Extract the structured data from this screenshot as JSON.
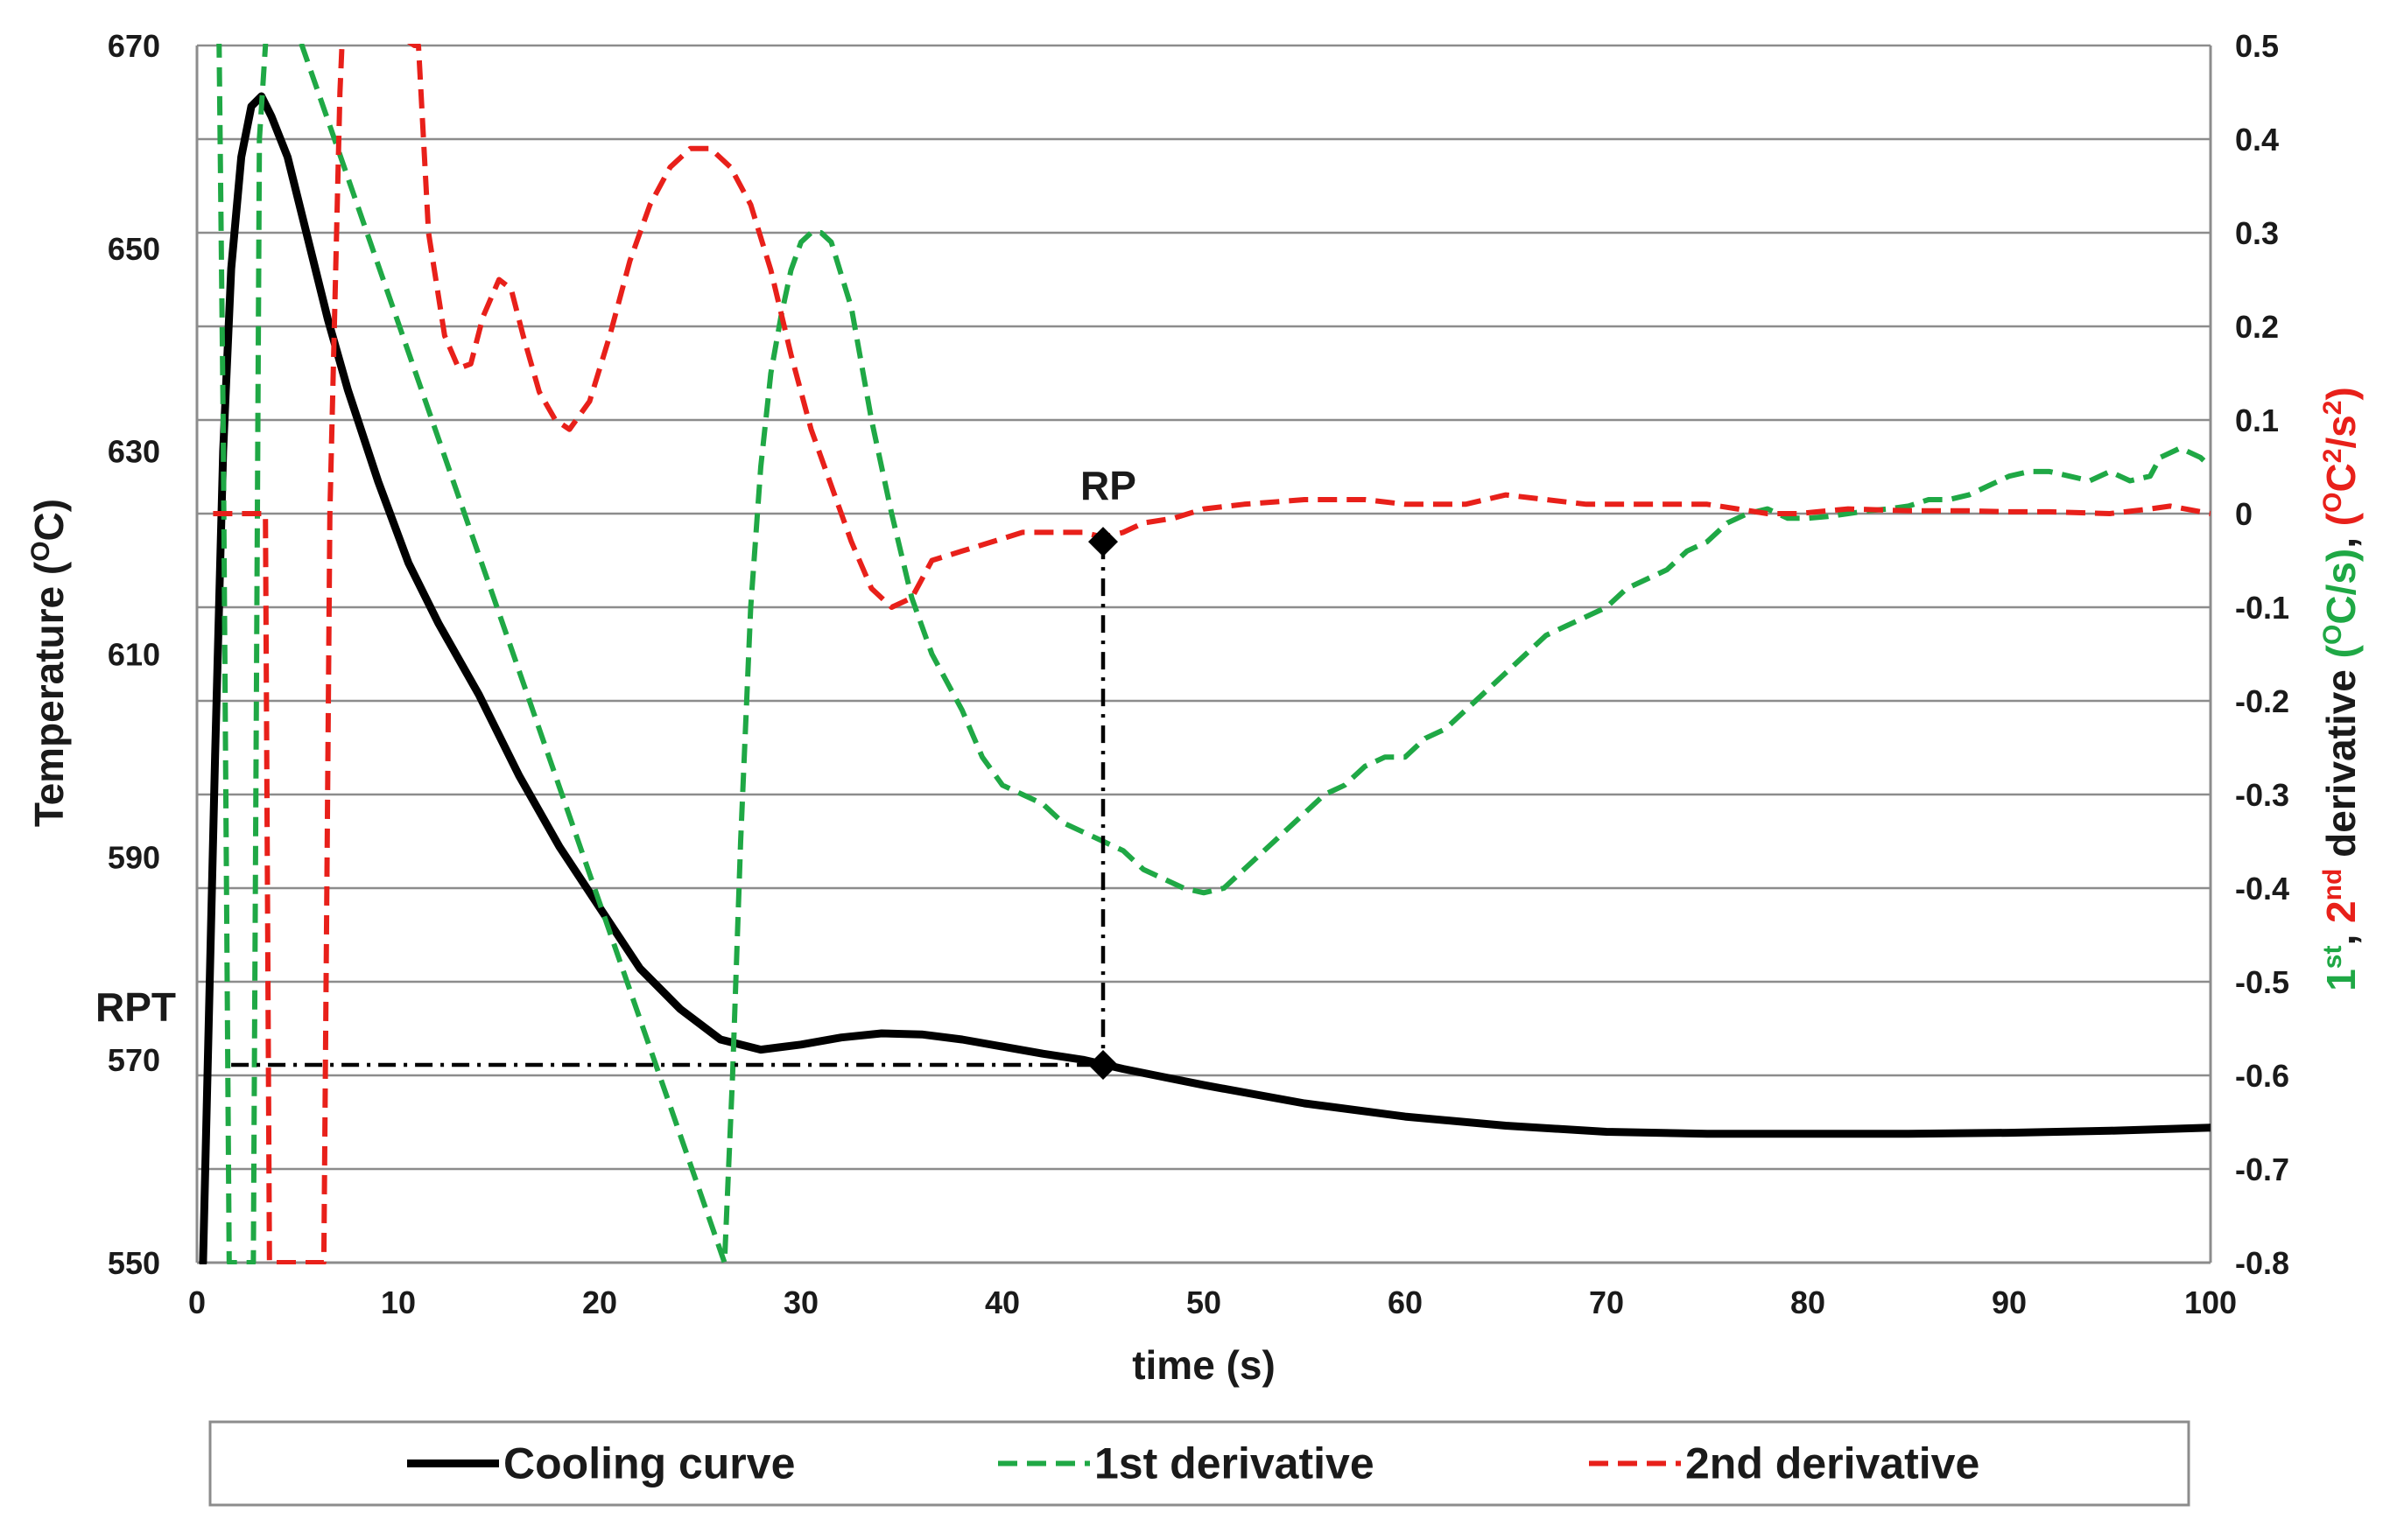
{
  "chart_data": {
    "type": "line",
    "x_axis": {
      "label": "time (s)",
      "range": [
        0,
        100
      ],
      "ticks": [
        0,
        10,
        20,
        30,
        40,
        50,
        60,
        70,
        80,
        90,
        100
      ]
    },
    "y_axis_left": {
      "label": "Temperature",
      "label_parts": [
        "Temperature (",
        "O",
        "C)"
      ],
      "range": [
        550,
        670
      ],
      "ticks": [
        550,
        570,
        590,
        610,
        630,
        650,
        670
      ]
    },
    "y_axis_right": {
      "range": [
        -0.8,
        0.5
      ],
      "ticks": [
        "-0.8",
        "-0.7",
        "-0.6",
        "-0.5",
        "-0.4",
        "-0.3",
        "-0.2",
        "-0.1",
        "0",
        "0.1",
        "0.2",
        "0.3",
        "0.4",
        "0.5"
      ],
      "label_parts": [
        {
          "text": "1",
          "color": "#1fa845",
          "sup": false
        },
        {
          "text": "st",
          "color": "#1fa845",
          "sup": true
        },
        {
          "text": ", ",
          "color": "#1a1a1a",
          "sup": false
        },
        {
          "text": "2",
          "color": "#e8201a",
          "sup": false
        },
        {
          "text": "nd",
          "color": "#e8201a",
          "sup": true
        },
        {
          "text": " derivative ",
          "color": "#1a1a1a",
          "sup": false
        },
        {
          "text": "(",
          "color": "#1fa845",
          "sup": false
        },
        {
          "text": "O",
          "color": "#1fa845",
          "sup": true
        },
        {
          "text": "C/s)",
          "color": "#1fa845",
          "sup": false
        },
        {
          "text": ", ",
          "color": "#1a1a1a",
          "sup": false
        },
        {
          "text": "(",
          "color": "#e8201a",
          "sup": false
        },
        {
          "text": "O",
          "color": "#e8201a",
          "sup": true
        },
        {
          "text": "C",
          "color": "#e8201a",
          "sup": false
        },
        {
          "text": "2",
          "color": "#e8201a",
          "sup": true
        },
        {
          "text": "/s",
          "color": "#e8201a",
          "sup": false
        },
        {
          "text": "2",
          "color": "#e8201a",
          "sup": true
        },
        {
          "text": ")",
          "color": "#e8201a",
          "sup": false
        }
      ]
    },
    "grid": "horizontal",
    "legend_position": "bottom",
    "series": [
      {
        "name": "Cooling curve",
        "axis": "left",
        "color": "#000000",
        "style": "solid",
        "points": [
          [
            0.3,
            550
          ],
          [
            0.6,
            575
          ],
          [
            0.9,
            600
          ],
          [
            1.3,
            630
          ],
          [
            1.7,
            648
          ],
          [
            2.2,
            659
          ],
          [
            2.7,
            664
          ],
          [
            3.2,
            665
          ],
          [
            3.7,
            663
          ],
          [
            4.5,
            659
          ],
          [
            5.5,
            651
          ],
          [
            6.5,
            643
          ],
          [
            7.5,
            636
          ],
          [
            9,
            627
          ],
          [
            10.5,
            619
          ],
          [
            12,
            613
          ],
          [
            14,
            606
          ],
          [
            16,
            598
          ],
          [
            18,
            591
          ],
          [
            20,
            585
          ],
          [
            22,
            579
          ],
          [
            24,
            575
          ],
          [
            26,
            572
          ],
          [
            28,
            571
          ],
          [
            30,
            571.5
          ],
          [
            32,
            572.2
          ],
          [
            34,
            572.6
          ],
          [
            36,
            572.5
          ],
          [
            38,
            572
          ],
          [
            40,
            571.3
          ],
          [
            42,
            570.6
          ],
          [
            44,
            570
          ],
          [
            46,
            569.1
          ],
          [
            48,
            568.3
          ],
          [
            50,
            567.5
          ],
          [
            55,
            565.7
          ],
          [
            60,
            564.4
          ],
          [
            65,
            563.5
          ],
          [
            70,
            562.9
          ],
          [
            75,
            562.7
          ],
          [
            80,
            562.7
          ],
          [
            85,
            562.7
          ],
          [
            90,
            562.8
          ],
          [
            95,
            563
          ],
          [
            100,
            563.3
          ]
        ]
      },
      {
        "name": "1st derivative",
        "axis": "right",
        "color": "#1fa845",
        "style": "dashed",
        "points": [
          [
            0.9,
            0.6
          ],
          [
            1.1,
            0.5
          ],
          [
            1.3,
            0.1
          ],
          [
            1.6,
            -0.8
          ],
          [
            2.8,
            -0.8
          ],
          [
            3.1,
            0.4
          ],
          [
            3.4,
            0.5
          ],
          [
            3.6,
            0.6
          ],
          [
            26.2,
            -0.8
          ],
          [
            26.6,
            -0.6
          ],
          [
            27,
            -0.35
          ],
          [
            27.5,
            -0.1
          ],
          [
            28,
            0.05
          ],
          [
            28.5,
            0.15
          ],
          [
            29,
            0.21
          ],
          [
            29.5,
            0.26
          ],
          [
            30,
            0.29
          ],
          [
            30.5,
            0.3
          ],
          [
            31,
            0.3
          ],
          [
            31.5,
            0.29
          ],
          [
            32.5,
            0.22
          ],
          [
            33.5,
            0.1
          ],
          [
            34.5,
            0
          ],
          [
            35.5,
            -0.09
          ],
          [
            36.5,
            -0.15
          ],
          [
            38,
            -0.21
          ],
          [
            39,
            -0.26
          ],
          [
            40,
            -0.29
          ],
          [
            41,
            -0.3
          ],
          [
            42,
            -0.31
          ],
          [
            43,
            -0.33
          ],
          [
            44,
            -0.34
          ],
          [
            45,
            -0.35
          ],
          [
            46,
            -0.36
          ],
          [
            47,
            -0.38
          ],
          [
            48,
            -0.39
          ],
          [
            49,
            -0.4
          ],
          [
            50,
            -0.405
          ],
          [
            51,
            -0.4
          ],
          [
            52,
            -0.38
          ],
          [
            53,
            -0.36
          ],
          [
            54,
            -0.34
          ],
          [
            55,
            -0.32
          ],
          [
            56,
            -0.3
          ],
          [
            57,
            -0.29
          ],
          [
            58,
            -0.27
          ],
          [
            59,
            -0.26
          ],
          [
            60,
            -0.26
          ],
          [
            61,
            -0.24
          ],
          [
            62,
            -0.23
          ],
          [
            63,
            -0.21
          ],
          [
            64,
            -0.19
          ],
          [
            65,
            -0.17
          ],
          [
            66,
            -0.15
          ],
          [
            67,
            -0.13
          ],
          [
            68,
            -0.12
          ],
          [
            69,
            -0.11
          ],
          [
            70,
            -0.1
          ],
          [
            71,
            -0.08
          ],
          [
            72,
            -0.07
          ],
          [
            73,
            -0.06
          ],
          [
            74,
            -0.04
          ],
          [
            75,
            -0.03
          ],
          [
            76,
            -0.01
          ],
          [
            77,
            0
          ],
          [
            78,
            0.005
          ],
          [
            79,
            -0.005
          ],
          [
            80,
            -0.005
          ],
          [
            81,
            -0.003
          ],
          [
            82,
            0
          ],
          [
            83,
            0.003
          ],
          [
            84,
            0.005
          ],
          [
            85,
            0.008
          ],
          [
            86,
            0.015
          ],
          [
            87,
            0.015
          ],
          [
            88,
            0.02
          ],
          [
            89,
            0.03
          ],
          [
            90,
            0.04
          ],
          [
            91,
            0.045
          ],
          [
            92,
            0.045
          ],
          [
            93,
            0.04
          ],
          [
            94,
            0.035
          ],
          [
            95,
            0.045
          ],
          [
            96,
            0.035
          ],
          [
            97,
            0.04
          ],
          [
            97.5,
            0.06
          ],
          [
            98.5,
            0.07
          ],
          [
            99.5,
            0.06
          ],
          [
            100,
            0.05
          ]
        ]
      },
      {
        "name": "2nd derivative",
        "axis": "right",
        "color": "#e8201a",
        "style": "dashed",
        "points": [
          [
            0.8,
            0
          ],
          [
            2.5,
            0
          ],
          [
            3.4,
            0
          ],
          [
            3.6,
            -0.8
          ],
          [
            6.3,
            -0.8
          ],
          [
            6.6,
            0
          ],
          [
            7.1,
            0.45
          ],
          [
            7.3,
            0.55
          ],
          [
            10.8,
            0.5
          ],
          [
            11,
            0.5
          ],
          [
            11.5,
            0.3
          ],
          [
            12.3,
            0.19
          ],
          [
            13,
            0.155
          ],
          [
            13.6,
            0.16
          ],
          [
            14.2,
            0.21
          ],
          [
            15,
            0.25
          ],
          [
            15.6,
            0.24
          ],
          [
            16.2,
            0.19
          ],
          [
            17,
            0.13
          ],
          [
            17.8,
            0.1
          ],
          [
            18.5,
            0.09
          ],
          [
            19.5,
            0.12
          ],
          [
            20.5,
            0.19
          ],
          [
            21.5,
            0.27
          ],
          [
            22.5,
            0.33
          ],
          [
            23.5,
            0.37
          ],
          [
            24.5,
            0.39
          ],
          [
            25.5,
            0.39
          ],
          [
            26.5,
            0.37
          ],
          [
            27.5,
            0.33
          ],
          [
            28.5,
            0.26
          ],
          [
            29.5,
            0.17
          ],
          [
            30.5,
            0.09
          ],
          [
            31.5,
            0.03
          ],
          [
            32.5,
            -0.03
          ],
          [
            33.5,
            -0.08
          ],
          [
            34.5,
            -0.1
          ],
          [
            35.5,
            -0.09
          ],
          [
            36.5,
            -0.05
          ],
          [
            38,
            -0.04
          ],
          [
            39.5,
            -0.03
          ],
          [
            41,
            -0.02
          ],
          [
            42.5,
            -0.02
          ],
          [
            44,
            -0.02
          ],
          [
            45,
            -0.025
          ],
          [
            46,
            -0.02
          ],
          [
            47,
            -0.01
          ],
          [
            48.5,
            -0.005
          ],
          [
            50,
            0.005
          ],
          [
            52,
            0.01
          ],
          [
            55,
            0.015
          ],
          [
            58,
            0.015
          ],
          [
            60,
            0.01
          ],
          [
            63,
            0.01
          ],
          [
            65,
            0.02
          ],
          [
            67,
            0.015
          ],
          [
            69,
            0.01
          ],
          [
            72,
            0.01
          ],
          [
            75,
            0.01
          ],
          [
            76.5,
            0.005
          ],
          [
            78,
            0
          ],
          [
            79.5,
            0
          ],
          [
            82,
            0.005
          ],
          [
            85,
            0.003
          ],
          [
            88,
            0.003
          ],
          [
            90,
            0.002
          ],
          [
            92,
            0.002
          ],
          [
            95,
            0
          ],
          [
            97,
            0.005
          ],
          [
            98,
            0.008
          ],
          [
            99,
            0.004
          ],
          [
            100,
            0
          ]
        ]
      }
    ],
    "annotations": [
      {
        "label": "RP",
        "x": 45,
        "y_right": -0.03
      },
      {
        "label": "RPT",
        "x": 45,
        "y_left": 569.5
      }
    ],
    "guide_lines": {
      "vertical_x": 45,
      "horizontal_y_left": 569.5,
      "horizontal_x_start": 1.7
    }
  }
}
